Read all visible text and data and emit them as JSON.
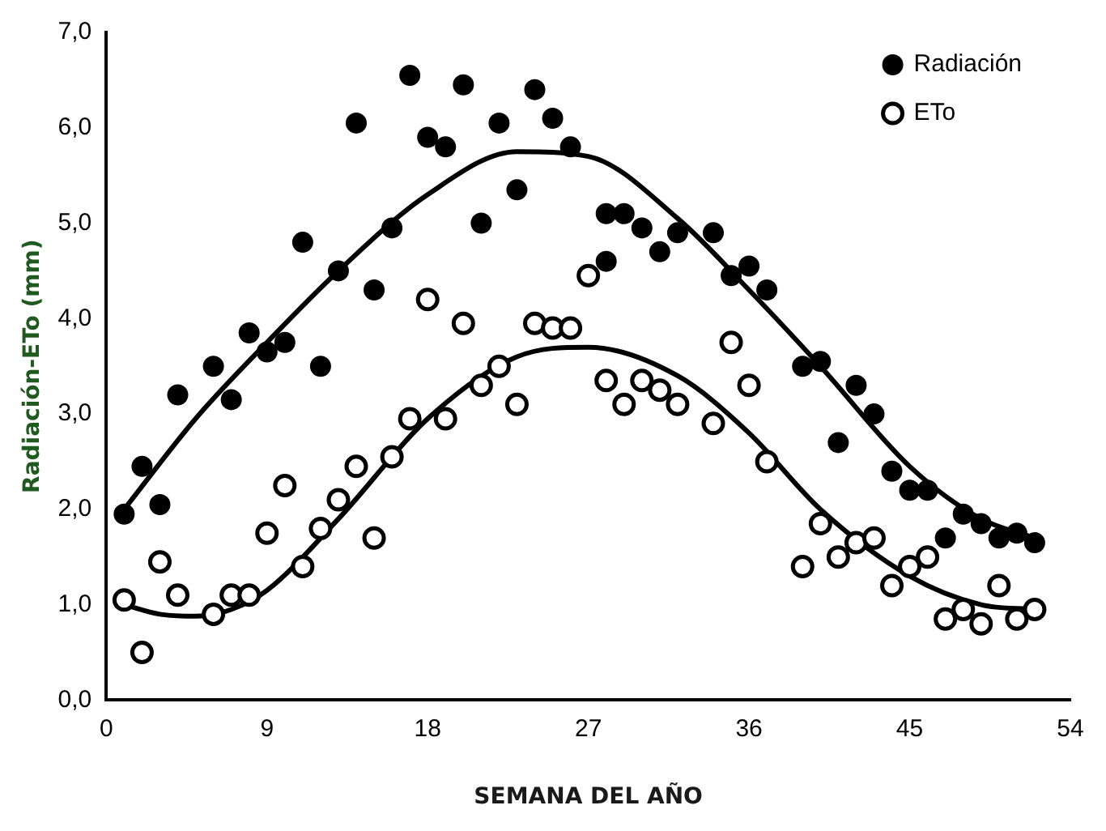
{
  "chart_data": {
    "type": "scatter",
    "xlabel": "SEMANA DEL AÑO",
    "ylabel": "Radiación-ETo (mm)",
    "xlim": [
      0,
      54
    ],
    "xticks": [
      0,
      9,
      18,
      27,
      36,
      45,
      54
    ],
    "ylim": [
      0,
      7
    ],
    "yticks": [
      {
        "value": 0,
        "label": "0,0"
      },
      {
        "value": 1,
        "label": "1,0"
      },
      {
        "value": 2,
        "label": "2,0"
      },
      {
        "value": 3,
        "label": "3,0"
      },
      {
        "value": 4,
        "label": "4,0"
      },
      {
        "value": 5,
        "label": "5,0"
      },
      {
        "value": 6,
        "label": "6,0"
      },
      {
        "value": 7,
        "label": "7,0"
      }
    ],
    "grid": false,
    "legend": "top right",
    "series": [
      {
        "name": "Radiación",
        "color": "#000000",
        "marker": "circle",
        "x": [
          1,
          2,
          3,
          4,
          6,
          7,
          8,
          9,
          10,
          11,
          12,
          13,
          14,
          15,
          16,
          17,
          18,
          19,
          20,
          21,
          22,
          23,
          24,
          25,
          26,
          28,
          28,
          29,
          30,
          31,
          32,
          34,
          35,
          36,
          37,
          39,
          40,
          41,
          42,
          43,
          44,
          45,
          46,
          47,
          48,
          49,
          50,
          51,
          52
        ],
        "values": [
          1.95,
          2.45,
          2.05,
          3.2,
          3.5,
          3.15,
          3.85,
          3.65,
          3.75,
          4.8,
          3.5,
          4.5,
          6.05,
          4.3,
          4.95,
          6.55,
          5.9,
          5.8,
          6.45,
          5.0,
          6.05,
          5.35,
          6.4,
          6.1,
          5.8,
          4.6,
          5.1,
          5.1,
          4.95,
          4.7,
          4.9,
          4.9,
          4.45,
          4.55,
          4.3,
          3.5,
          3.55,
          2.7,
          3.3,
          3.0,
          2.4,
          2.2,
          2.2,
          1.7,
          1.95,
          1.85,
          1.7,
          1.75,
          1.65
        ]
      },
      {
        "name": "ETo",
        "color": "#000000",
        "marker": "circle",
        "x": [
          1,
          2,
          3,
          4,
          6,
          7,
          8,
          9,
          10,
          11,
          12,
          13,
          14,
          15,
          16,
          17,
          18,
          19,
          20,
          21,
          22,
          23,
          24,
          25,
          26,
          27,
          28,
          29,
          30,
          31,
          32,
          34,
          35,
          36,
          37,
          39,
          40,
          41,
          42,
          43,
          44,
          45,
          46,
          47,
          48,
          49,
          50,
          51,
          52
        ],
        "values": [
          1.05,
          0.5,
          1.45,
          1.1,
          0.9,
          1.1,
          1.1,
          1.75,
          2.25,
          1.4,
          1.8,
          2.1,
          2.45,
          1.7,
          2.55,
          2.95,
          4.2,
          2.95,
          3.95,
          3.3,
          3.5,
          3.1,
          3.95,
          3.9,
          3.9,
          4.45,
          3.35,
          3.1,
          3.35,
          3.25,
          3.1,
          2.9,
          3.75,
          3.3,
          2.5,
          1.4,
          1.85,
          1.5,
          1.65,
          1.7,
          1.2,
          1.4,
          1.5,
          0.85,
          0.95,
          0.8,
          1.2,
          0.85,
          0.95
        ]
      },
      {
        "type": "line",
        "color": "#000000",
        "marker": "none",
        "x": [
          1,
          5,
          9,
          13,
          18,
          23,
          27,
          32,
          36,
          40,
          45,
          49,
          52
        ],
        "values": [
          2.0,
          2.95,
          3.75,
          4.5,
          5.3,
          5.75,
          5.7,
          5.05,
          4.3,
          3.5,
          2.45,
          1.9,
          1.7
        ]
      },
      {
        "type": "line",
        "color": "#000000",
        "marker": "none",
        "x": [
          1,
          3,
          5,
          7,
          9,
          13,
          18,
          23,
          27,
          32,
          36,
          40,
          45,
          49,
          52
        ],
        "values": [
          1.0,
          0.9,
          0.88,
          0.95,
          1.15,
          1.9,
          2.95,
          3.6,
          3.7,
          3.4,
          2.8,
          2.0,
          1.3,
          1.0,
          0.95
        ]
      }
    ]
  }
}
